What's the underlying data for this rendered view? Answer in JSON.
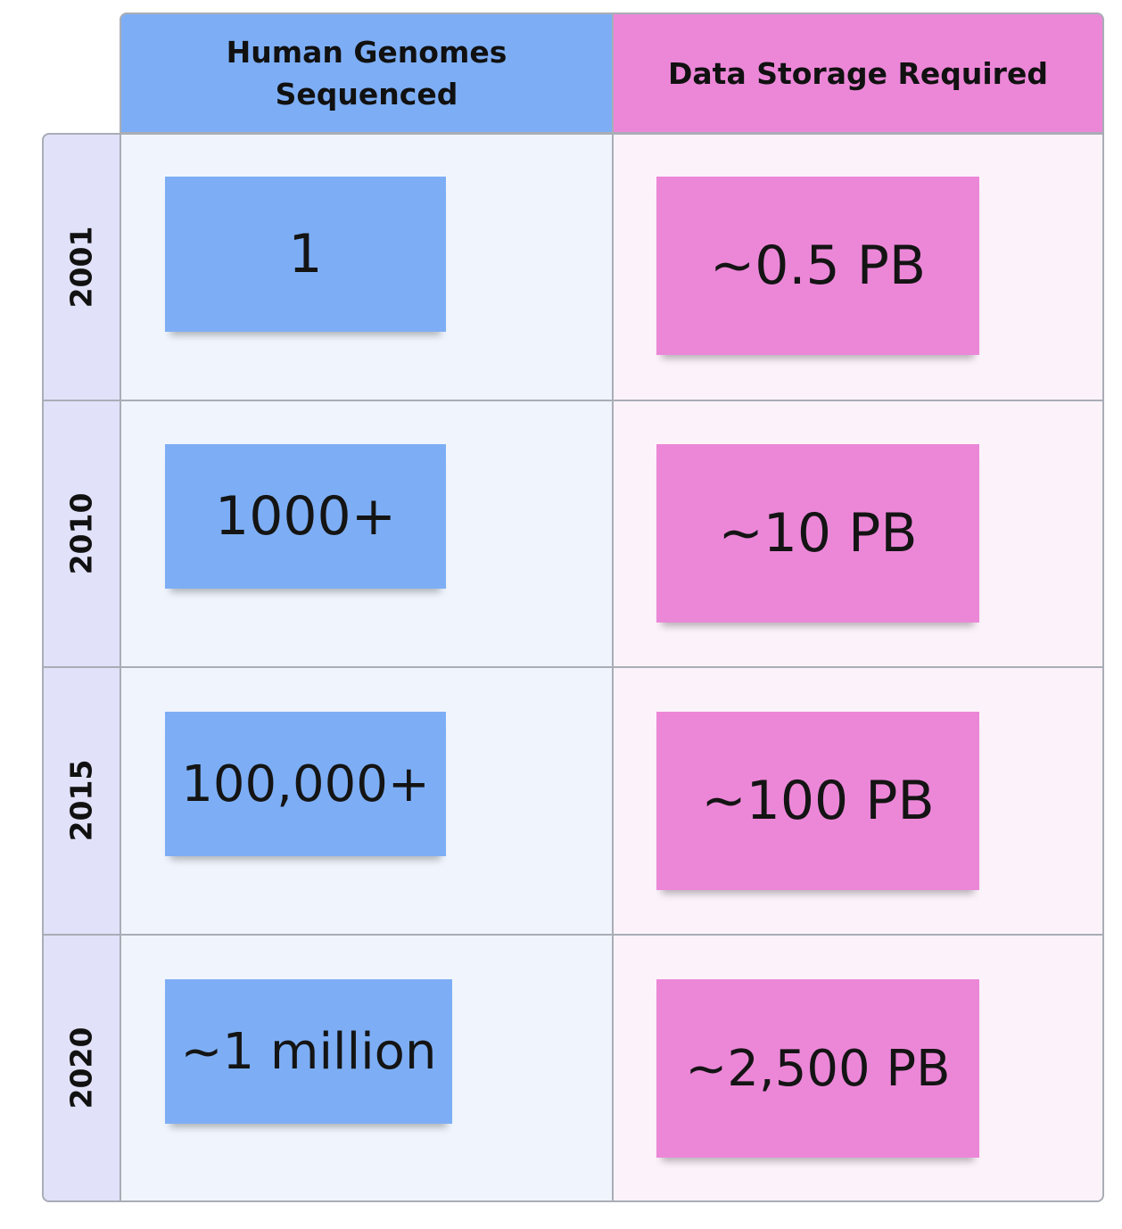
{
  "headers": {
    "genomes_line1": "Human Genomes",
    "genomes_line2": "Sequenced",
    "storage": "Data Storage Required"
  },
  "rows": [
    {
      "year": "2001",
      "genomes": "1",
      "storage": "~0.5 PB"
    },
    {
      "year": "2010",
      "genomes": "1000+",
      "storage": "~10 PB"
    },
    {
      "year": "2015",
      "genomes": "100,000+",
      "storage": "~100 PB"
    },
    {
      "year": "2020",
      "genomes": "~1 million",
      "storage": "~2,500 PB"
    }
  ],
  "colors": {
    "genomes_accent": "#7daef5",
    "storage_accent": "#ec87d8",
    "year_column": "#e1e1f9",
    "genomes_column": "#f0f5fd",
    "storage_column": "#fcf2fa"
  }
}
